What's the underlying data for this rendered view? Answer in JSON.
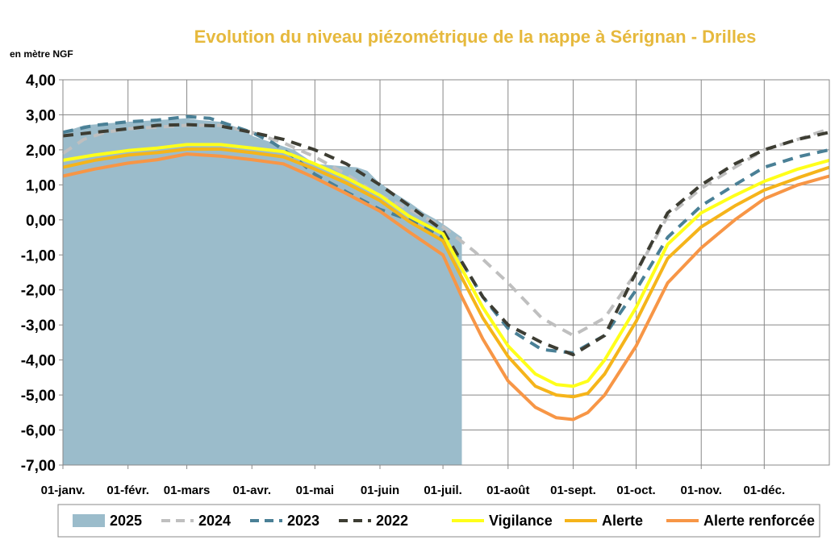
{
  "chart_data": {
    "type": "line",
    "title": "Evolution du niveau piézométrique de la nappe à Sérignan  - Drilles",
    "ylabel": "en mètre NGF",
    "ylim": [
      -7,
      4
    ],
    "ytick_values": [
      4,
      3,
      2,
      1,
      0,
      -1,
      -2,
      -3,
      -4,
      -5,
      -6,
      -7
    ],
    "ytick_labels": [
      "4,00",
      "3,00",
      "2,00",
      "1,00",
      "0,00",
      "-1,00",
      "-2,00",
      "-3,00",
      "-4,00",
      "-5,00",
      "-6,00",
      "-7,00"
    ],
    "xlim": [
      0,
      365
    ],
    "xtick_positions": [
      0,
      31,
      59,
      90,
      120,
      151,
      181,
      212,
      243,
      273,
      304,
      334
    ],
    "xtick_labels": [
      "01-janv.",
      "01-févr.",
      "01-mars",
      "01-avr.",
      "01-mai",
      "01-juin",
      "01-juil.",
      "01-août",
      "01-sept.",
      "01-oct.",
      "01-nov.",
      "01-déc."
    ],
    "grid": true,
    "legend_position": "bottom",
    "colors": {
      "title": "#E6B93D",
      "grid": "#888888",
      "plot_border": "#888888"
    },
    "series": [
      {
        "name": "2025",
        "style": "area",
        "color": "#9BBCCB",
        "x": [
          0,
          10,
          20,
          31,
          45,
          59,
          65,
          75,
          85,
          90,
          100,
          110,
          115,
          120,
          130,
          140,
          145,
          150,
          157,
          165,
          172,
          178,
          183,
          190
        ],
        "y": [
          2.5,
          2.7,
          2.75,
          2.8,
          2.85,
          2.9,
          2.85,
          2.8,
          2.6,
          2.4,
          2.2,
          2.0,
          1.8,
          1.6,
          1.55,
          1.5,
          1.4,
          1.1,
          0.8,
          0.5,
          0.2,
          0.0,
          -0.2,
          -0.5
        ]
      },
      {
        "name": "2024",
        "style": "dashed",
        "color": "#BFBFBF",
        "x": [
          0,
          10,
          20,
          31,
          45,
          59,
          75,
          90,
          105,
          120,
          135,
          151,
          165,
          181,
          196,
          212,
          228,
          243,
          258,
          273,
          288,
          304,
          320,
          334,
          350,
          365
        ],
        "y": [
          1.9,
          2.3,
          2.5,
          2.6,
          2.65,
          2.7,
          2.7,
          2.5,
          2.2,
          1.8,
          1.3,
          0.7,
          0.3,
          -0.2,
          -0.9,
          -1.8,
          -2.8,
          -3.3,
          -2.8,
          -1.5,
          0.1,
          0.9,
          1.5,
          2.0,
          2.3,
          2.6
        ]
      },
      {
        "name": "2023",
        "style": "dashed",
        "color": "#4A8096",
        "x": [
          0,
          15,
          31,
          45,
          59,
          70,
          80,
          90,
          100,
          110,
          120,
          135,
          151,
          165,
          181,
          190,
          200,
          212,
          228,
          243,
          258,
          273,
          288,
          304,
          320,
          334,
          350,
          365
        ],
        "y": [
          2.5,
          2.7,
          2.8,
          2.85,
          2.95,
          2.9,
          2.7,
          2.5,
          2.2,
          1.8,
          1.3,
          0.8,
          0.3,
          0.0,
          -0.5,
          -1.2,
          -2.2,
          -3.1,
          -3.7,
          -3.8,
          -3.3,
          -2.0,
          -0.5,
          0.4,
          1.0,
          1.5,
          1.8,
          2.0
        ]
      },
      {
        "name": "2022",
        "style": "dashed",
        "color": "#3D3D33",
        "x": [
          0,
          15,
          31,
          45,
          59,
          75,
          90,
          105,
          120,
          135,
          151,
          165,
          181,
          190,
          200,
          212,
          228,
          243,
          258,
          273,
          288,
          304,
          320,
          334,
          350,
          365
        ],
        "y": [
          2.4,
          2.5,
          2.6,
          2.7,
          2.72,
          2.68,
          2.5,
          2.3,
          2.0,
          1.6,
          1.0,
          0.4,
          -0.3,
          -1.2,
          -2.2,
          -3.0,
          -3.5,
          -3.85,
          -3.3,
          -1.5,
          0.2,
          1.0,
          1.6,
          2.0,
          2.3,
          2.5
        ]
      },
      {
        "name": "Vigilance",
        "style": "solid",
        "color": "#FFFF1A",
        "x": [
          0,
          15,
          31,
          45,
          59,
          75,
          90,
          105,
          120,
          135,
          151,
          165,
          181,
          190,
          200,
          212,
          225,
          235,
          243,
          250,
          258,
          273,
          288,
          304,
          320,
          334,
          350,
          365
        ],
        "y": [
          1.7,
          1.85,
          1.98,
          2.05,
          2.15,
          2.15,
          2.05,
          1.95,
          1.6,
          1.2,
          0.7,
          0.1,
          -0.4,
          -1.4,
          -2.5,
          -3.6,
          -4.4,
          -4.7,
          -4.75,
          -4.6,
          -4.0,
          -2.5,
          -0.7,
          0.2,
          0.7,
          1.1,
          1.45,
          1.7
        ]
      },
      {
        "name": "Alerte",
        "style": "solid",
        "color": "#F5B41A",
        "x": [
          0,
          15,
          31,
          45,
          59,
          75,
          90,
          105,
          120,
          135,
          151,
          165,
          181,
          190,
          200,
          212,
          225,
          235,
          243,
          250,
          258,
          273,
          288,
          304,
          320,
          334,
          350,
          365
        ],
        "y": [
          1.5,
          1.7,
          1.85,
          1.92,
          2.02,
          2.02,
          1.92,
          1.8,
          1.45,
          1.05,
          0.55,
          -0.05,
          -0.6,
          -1.65,
          -2.8,
          -3.9,
          -4.75,
          -5.0,
          -5.05,
          -4.95,
          -4.4,
          -2.9,
          -1.1,
          -0.2,
          0.4,
          0.85,
          1.2,
          1.5
        ]
      },
      {
        "name": "Alerte renforcée",
        "style": "solid",
        "color": "#F79646",
        "x": [
          0,
          15,
          31,
          45,
          59,
          75,
          90,
          105,
          120,
          135,
          151,
          165,
          181,
          190,
          200,
          212,
          225,
          235,
          243,
          250,
          258,
          273,
          288,
          304,
          320,
          334,
          350,
          365
        ],
        "y": [
          1.25,
          1.45,
          1.62,
          1.72,
          1.88,
          1.82,
          1.72,
          1.6,
          1.2,
          0.75,
          0.25,
          -0.35,
          -1.0,
          -2.2,
          -3.4,
          -4.6,
          -5.35,
          -5.65,
          -5.7,
          -5.5,
          -5.0,
          -3.6,
          -1.8,
          -0.8,
          0.0,
          0.6,
          1.0,
          1.25
        ]
      }
    ]
  }
}
